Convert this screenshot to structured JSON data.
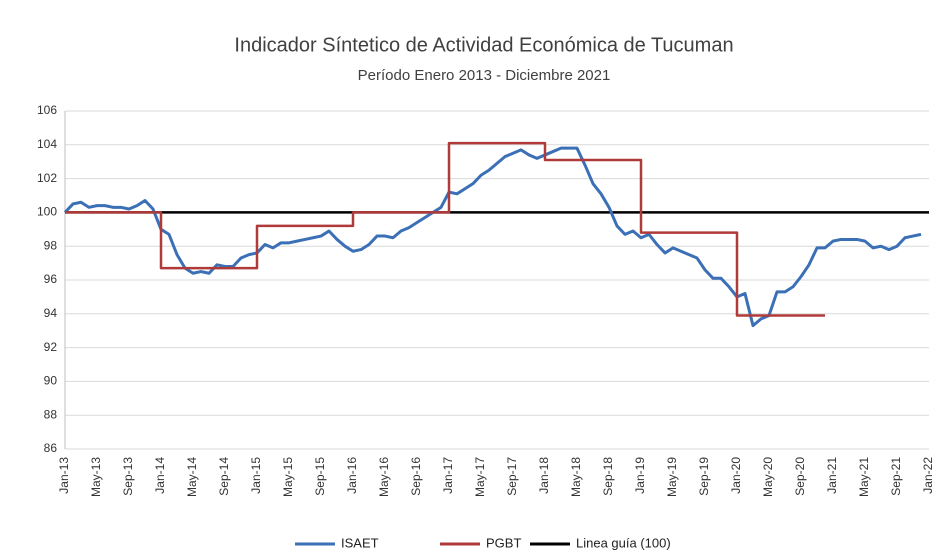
{
  "chart_data": {
    "type": "line",
    "title": "Indicador Síntetico de Actividad Económica de Tucuman",
    "subtitle": "Período Enero 2013 - Diciembre 2021",
    "categories": [
      "Jan-13",
      null,
      null,
      null,
      "May-13",
      null,
      null,
      null,
      "Sep-13",
      null,
      null,
      null,
      "Jan-14",
      null,
      null,
      null,
      "May-14",
      null,
      null,
      null,
      "Sep-14",
      null,
      null,
      null,
      "Jan-15",
      null,
      null,
      null,
      "May-15",
      null,
      null,
      null,
      "Sep-15",
      null,
      null,
      null,
      "Jan-16",
      null,
      null,
      null,
      "May-16",
      null,
      null,
      null,
      "Sep-16",
      null,
      null,
      null,
      "Jan-17",
      null,
      null,
      null,
      "May-17",
      null,
      null,
      null,
      "Sep-17",
      null,
      null,
      null,
      "Jan-18",
      null,
      null,
      null,
      "May-18",
      null,
      null,
      null,
      "Sep-18",
      null,
      null,
      null,
      "Jan-19",
      null,
      null,
      null,
      "May-19",
      null,
      null,
      null,
      "Sep-19",
      null,
      null,
      null,
      "Jan-20",
      null,
      null,
      null,
      "May-20",
      null,
      null,
      null,
      "Sep-20",
      null,
      null,
      null,
      "Jan-21",
      null,
      null,
      null,
      "May-21",
      null,
      null,
      null,
      "Sep-21",
      null,
      null,
      null,
      "Jan-22"
    ],
    "series": [
      {
        "name": "ISAET",
        "color": "#3b6fb6",
        "values": [
          100.0,
          100.5,
          100.6,
          100.3,
          100.4,
          100.4,
          100.3,
          100.3,
          100.2,
          100.4,
          100.7,
          100.2,
          99.0,
          98.7,
          97.5,
          96.7,
          96.4,
          96.5,
          96.4,
          96.9,
          96.8,
          96.8,
          97.3,
          97.5,
          97.6,
          98.1,
          97.9,
          98.2,
          98.2,
          98.3,
          98.4,
          98.5,
          98.6,
          98.9,
          98.4,
          98.0,
          97.7,
          97.8,
          98.1,
          98.6,
          98.6,
          98.5,
          98.9,
          99.1,
          99.4,
          99.7,
          100.0,
          100.3,
          101.2,
          101.1,
          101.4,
          101.7,
          102.2,
          102.5,
          102.9,
          103.3,
          103.5,
          103.7,
          103.4,
          103.2,
          103.4,
          103.6,
          103.8,
          103.8,
          103.8,
          102.8,
          101.7,
          101.1,
          100.3,
          99.2,
          98.7,
          98.9,
          98.5,
          98.7,
          98.1,
          97.6,
          97.9,
          97.7,
          97.5,
          97.3,
          96.6,
          96.1,
          96.1,
          95.6,
          95.0,
          95.2,
          93.3,
          93.7,
          93.9,
          95.3,
          95.3,
          95.6,
          96.2,
          96.9,
          97.9,
          97.9,
          98.3,
          98.4,
          98.4,
          98.4,
          98.3,
          97.9,
          98.0,
          97.8,
          98.0,
          98.5,
          98.6,
          98.7,
          null
        ]
      },
      {
        "name": "PGBT",
        "color": "#b03a3a",
        "step": "post",
        "values": [
          100,
          100,
          100,
          100,
          100,
          100,
          100,
          100,
          100,
          100,
          100,
          100,
          96.7,
          96.7,
          96.7,
          96.7,
          96.7,
          96.7,
          96.7,
          96.7,
          96.7,
          96.7,
          96.7,
          96.7,
          99.2,
          99.2,
          99.2,
          99.2,
          99.2,
          99.2,
          99.2,
          99.2,
          99.2,
          99.2,
          99.2,
          99.2,
          100,
          100,
          100,
          100,
          100,
          100,
          100,
          100,
          100,
          100,
          100,
          100,
          104.1,
          104.1,
          104.1,
          104.1,
          104.1,
          104.1,
          104.1,
          104.1,
          104.1,
          104.1,
          104.1,
          104.1,
          103.1,
          103.1,
          103.1,
          103.1,
          103.1,
          103.1,
          103.1,
          103.1,
          103.1,
          103.1,
          103.1,
          103.1,
          98.8,
          98.8,
          98.8,
          98.8,
          98.8,
          98.8,
          98.8,
          98.8,
          98.8,
          98.8,
          98.8,
          98.8,
          93.9,
          93.9,
          93.9,
          93.9,
          93.9,
          93.9,
          93.9,
          93.9,
          93.9,
          93.9,
          93.9,
          93.9,
          null,
          null,
          null,
          null,
          null,
          null,
          null,
          null,
          null,
          null,
          null,
          null,
          null
        ]
      },
      {
        "name": "Linea guía (100)",
        "color": "#000000",
        "values": [
          100,
          100,
          100,
          100,
          100,
          100,
          100,
          100,
          100,
          100,
          100,
          100,
          100,
          100,
          100,
          100,
          100,
          100,
          100,
          100,
          100,
          100,
          100,
          100,
          100,
          100,
          100,
          100,
          100,
          100,
          100,
          100,
          100,
          100,
          100,
          100,
          100,
          100,
          100,
          100,
          100,
          100,
          100,
          100,
          100,
          100,
          100,
          100,
          100,
          100,
          100,
          100,
          100,
          100,
          100,
          100,
          100,
          100,
          100,
          100,
          100,
          100,
          100,
          100,
          100,
          100,
          100,
          100,
          100,
          100,
          100,
          100,
          100,
          100,
          100,
          100,
          100,
          100,
          100,
          100,
          100,
          100,
          100,
          100,
          100,
          100,
          100,
          100,
          100,
          100,
          100,
          100,
          100,
          100,
          100,
          100,
          100,
          100,
          100,
          100,
          100,
          100,
          100,
          100,
          100,
          100,
          100,
          100,
          100
        ]
      }
    ],
    "ylim": [
      86,
      106
    ],
    "yticks": [
      86,
      88,
      90,
      92,
      94,
      96,
      98,
      100,
      102,
      104,
      106
    ],
    "grid": true
  }
}
